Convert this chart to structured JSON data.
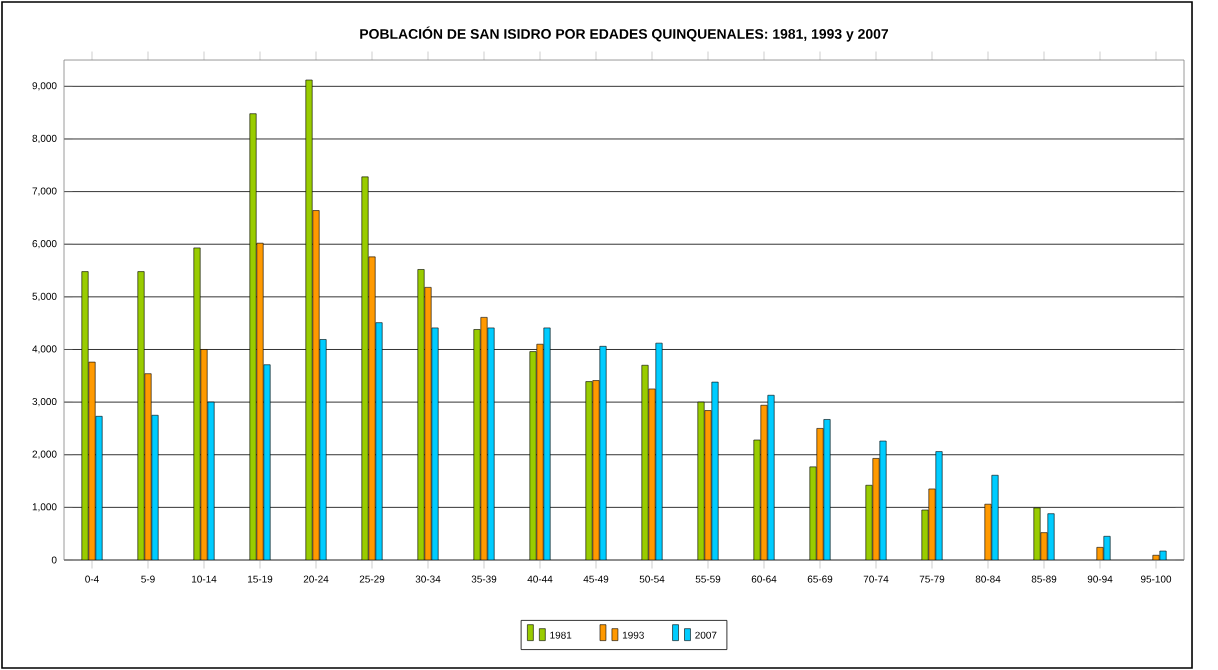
{
  "chart_data": {
    "type": "bar",
    "title": "POBLACIÓN DE SAN ISIDRO POR EDADES QUINQUENALES: 1981, 1993 y 2007",
    "categories": [
      "0-4",
      "5-9",
      "10-14",
      "15-19",
      "20-24",
      "25-29",
      "30-34",
      "35-39",
      "40-44",
      "45-49",
      "50-54",
      "55-59",
      "60-64",
      "65-69",
      "70-74",
      "75-79",
      "80-84",
      "85-89",
      "90-94",
      "95-100"
    ],
    "series": [
      {
        "name": "1981",
        "color": "#99cc00",
        "values": [
          5480,
          5480,
          5930,
          8480,
          9120,
          7280,
          5520,
          4380,
          3960,
          3390,
          3700,
          3000,
          2280,
          1770,
          1420,
          950,
          null,
          990,
          null,
          null
        ]
      },
      {
        "name": "1993",
        "color": "#ff9900",
        "values": [
          3760,
          3540,
          4000,
          6020,
          6640,
          5760,
          5180,
          4610,
          4100,
          3410,
          3250,
          2840,
          2940,
          2500,
          1930,
          1350,
          1060,
          520,
          240,
          90
        ]
      },
      {
        "name": "2007",
        "color": "#00ccff",
        "values": [
          2730,
          2750,
          3000,
          3710,
          4190,
          4510,
          4410,
          4410,
          4410,
          4060,
          4120,
          3380,
          3130,
          2670,
          2260,
          2060,
          1610,
          880,
          450,
          170
        ]
      }
    ],
    "ylim": [
      0,
      9500
    ],
    "yticks": [
      0,
      {
        "value": 1000,
        "label": "1,000"
      },
      {
        "value": 2000,
        "label": "2,000"
      },
      {
        "value": 3000,
        "label": "3,000"
      },
      {
        "value": 4000,
        "label": "4,000"
      },
      {
        "value": 5000,
        "label": "5,000"
      },
      {
        "value": 6000,
        "label": "6,000"
      },
      {
        "value": 7000,
        "label": "7,000"
      },
      {
        "value": 8000,
        "label": "8,000"
      },
      {
        "value": 9000,
        "label": "9,000"
      }
    ],
    "grid": "y",
    "legend": "bottom"
  }
}
